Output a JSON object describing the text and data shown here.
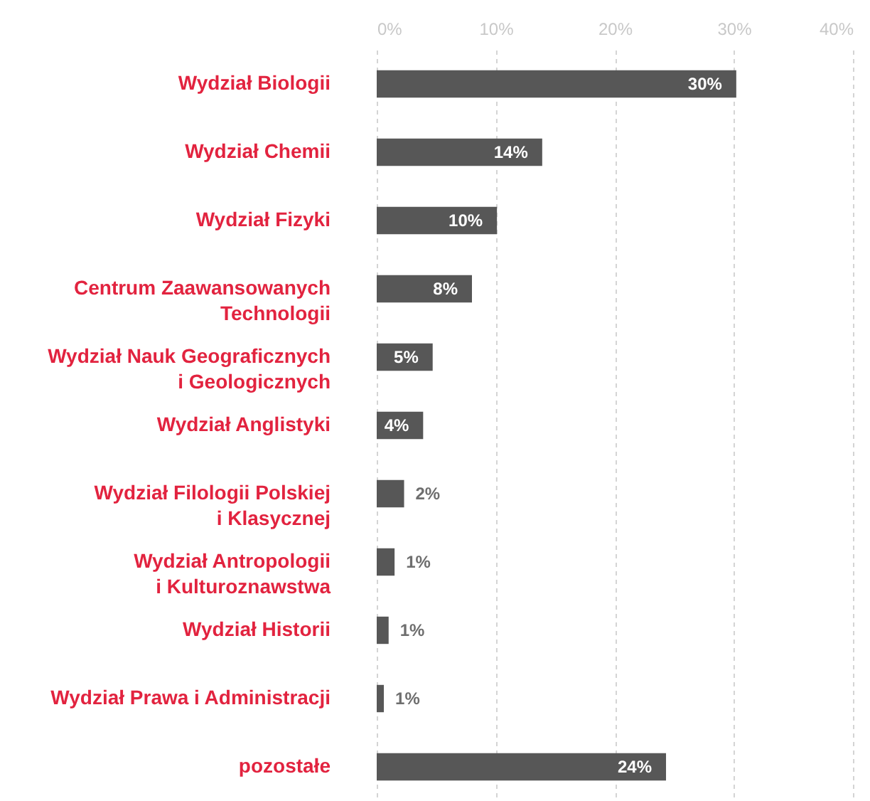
{
  "chart_data": {
    "type": "bar",
    "orientation": "horizontal",
    "categories": [
      "Wydział Biologii",
      "Wydział Chemii",
      "Wydział Fizyki",
      "Centrum Zaawansowanych Technologii",
      "Wydział Nauk Geograficznych i Geologicznych",
      "Wydział Anglistyki",
      "Wydział Filologii Polskiej i Klasycznej",
      "Wydział Antropologii i Kulturoznawstwa",
      "Wydział Historii",
      "Wydział Prawa i Administracji",
      "pozostałe"
    ],
    "values": [
      30.2,
      13.9,
      10.1,
      8,
      4.7,
      3.9,
      2.3,
      1.5,
      1,
      0.6,
      24.3
    ],
    "value_labels": [
      "30%",
      "14%",
      "10%",
      "8%",
      "5%",
      "4%",
      "2%",
      "1%",
      "1%",
      "1%",
      "24%"
    ],
    "color": "#575757",
    "xlim": [
      0,
      40
    ],
    "xticks": [
      {
        "value": 0,
        "label": "0%"
      },
      {
        "value": 10,
        "label": "10%"
      },
      {
        "value": 20,
        "label": "20%"
      },
      {
        "value": 30,
        "label": "30%"
      },
      {
        "value": 40,
        "label": "40%"
      }
    ],
    "grid": "x"
  }
}
